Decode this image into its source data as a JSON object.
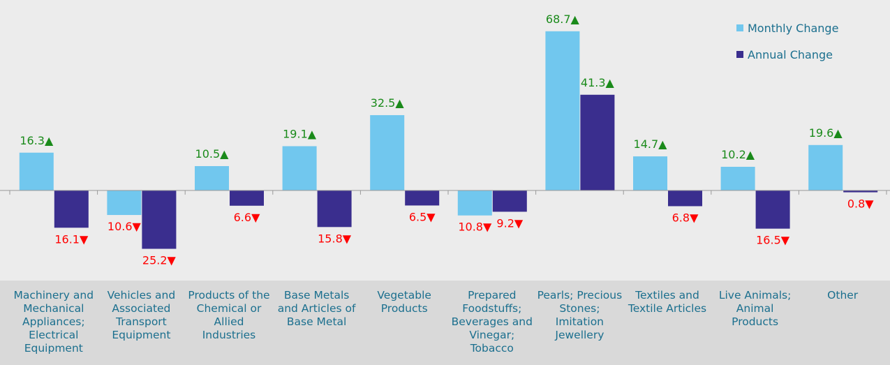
{
  "chart_data": {
    "type": "bar",
    "categories": [
      "Machinery and Mechanical Appliances; Electrical Equipment",
      "Vehicles and Associated Transport Equipment",
      "Products of the Chemical or Allied Industries",
      "Base Metals and Articles of Base Metal",
      "Vegetable Products",
      "Prepared Foodstuffs; Beverages and Vinegar; Tobacco",
      "Pearls; Precious Stones; Imitation Jewellery",
      "Textiles and Textile Articles",
      "Live Animals; Animal Products",
      "Other"
    ],
    "series": [
      {
        "name": "Monthly Change",
        "color": "#71c7ee",
        "values": [
          16.3,
          -10.6,
          10.5,
          19.1,
          32.5,
          -10.8,
          68.7,
          14.7,
          10.2,
          19.6
        ],
        "value_labels": [
          "16.3▲",
          "10.6▼",
          "10.5▲",
          "19.1▲",
          "32.5▲",
          "10.8▼",
          "68.7▲",
          "14.7▲",
          "10.2▲",
          "19.6▲"
        ]
      },
      {
        "name": "Annual Change",
        "color": "#3a2e8e",
        "values": [
          -16.1,
          -25.2,
          -6.6,
          -15.8,
          -6.5,
          -9.2,
          41.3,
          -6.8,
          -16.5,
          -0.8
        ],
        "value_labels": [
          "16.1▼",
          "25.2▼",
          "6.6▼",
          "15.8▼",
          "6.5▼",
          "9.2▼",
          "41.3▲",
          "6.8▼",
          "16.5▼",
          "0.8▼"
        ]
      }
    ],
    "ylim": [
      -38.3,
      82.2
    ],
    "legend": "top-right",
    "up_color": "#1a8a1a",
    "down_color": "#ff0000"
  }
}
